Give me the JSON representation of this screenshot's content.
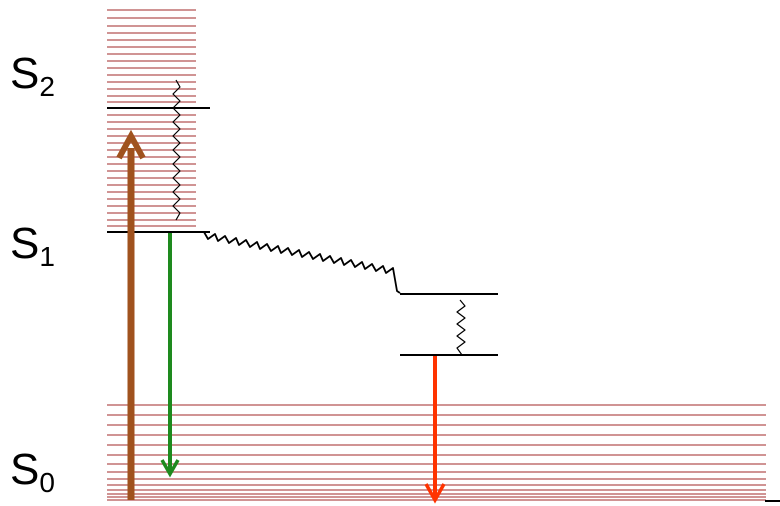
{
  "states": [
    {
      "id": "s2",
      "main": "S",
      "sub": "2"
    },
    {
      "id": "s1",
      "main": "S",
      "sub": "1"
    },
    {
      "id": "s0",
      "main": "S",
      "sub": "0"
    }
  ],
  "colors": {
    "vibrational_levels": "#c07070",
    "electronic_levels": "#000000",
    "absorption_arrow": "#a0521e",
    "fluorescence_arrow": "#1e8a1e",
    "phosphorescence_arrow": "#ff3300",
    "nonradiative_wavy": "#000000"
  }
}
